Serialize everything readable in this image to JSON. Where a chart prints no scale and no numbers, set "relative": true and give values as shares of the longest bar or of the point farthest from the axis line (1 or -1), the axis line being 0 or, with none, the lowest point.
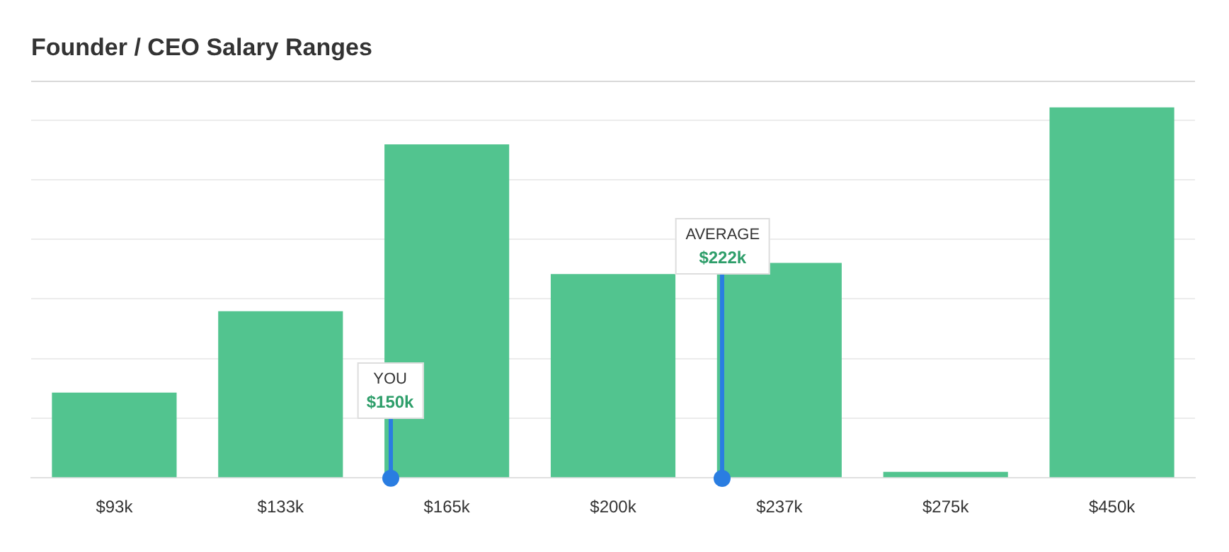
{
  "chart_data": {
    "type": "bar",
    "title": "Founder / CEO Salary Ranges",
    "categories": [
      "$93k",
      "$133k",
      "$165k",
      "$200k",
      "$237k",
      "$275k",
      "$450k"
    ],
    "values": [
      0.23,
      0.45,
      0.9,
      0.55,
      0.58,
      0.016,
      1
    ],
    "color": "#52c48f",
    "relative": true,
    "grid": "y",
    "legend": false,
    "annotations": [
      "YOU\n$150k",
      "AVERAGE\n$222k"
    ]
  }
}
